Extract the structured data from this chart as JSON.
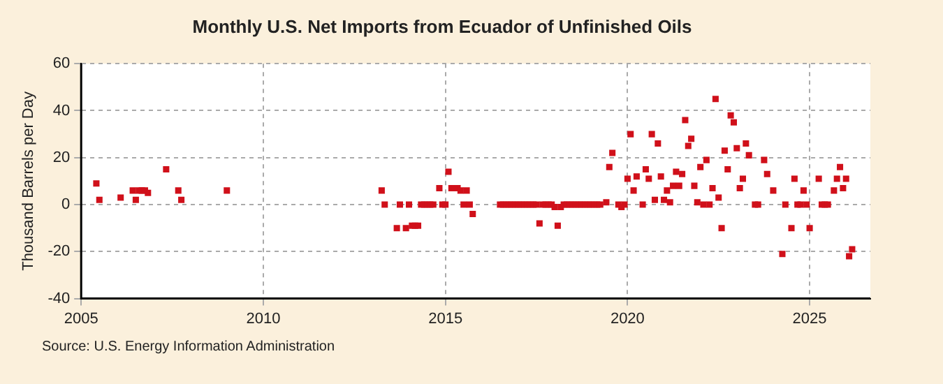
{
  "chart_data": {
    "type": "scatter",
    "title": "Monthly U.S. Net Imports from Ecuador of Unfinished Oils",
    "ylabel": "Thousand Barrels per Day",
    "annotations": [
      "Source: U.S. Energy Information Administration"
    ],
    "x": [
      "2005-06",
      "2005-07",
      "2006-02",
      "2006-06",
      "2006-07",
      "2006-08",
      "2006-09",
      "2006-10",
      "2006-11",
      "2007-05",
      "2007-09",
      "2007-10",
      "2009-01",
      "2013-04",
      "2013-05",
      "2013-09",
      "2013-10",
      "2013-12",
      "2014-01",
      "2014-02",
      "2014-03",
      "2014-04",
      "2014-05",
      "2014-06",
      "2014-07",
      "2014-08",
      "2014-09",
      "2014-11",
      "2014-12",
      "2015-01",
      "2015-02",
      "2015-03",
      "2015-04",
      "2015-05",
      "2015-06",
      "2015-07",
      "2015-08",
      "2015-09",
      "2015-10",
      "2016-07",
      "2016-08",
      "2016-09",
      "2016-10",
      "2016-11",
      "2016-12",
      "2017-01",
      "2017-02",
      "2017-03",
      "2017-04",
      "2017-05",
      "2017-06",
      "2017-07",
      "2017-08",
      "2017-09",
      "2017-10",
      "2017-11",
      "2017-12",
      "2018-01",
      "2018-02",
      "2018-03",
      "2018-04",
      "2018-05",
      "2018-06",
      "2018-07",
      "2018-08",
      "2018-09",
      "2018-10",
      "2018-11",
      "2018-12",
      "2019-01",
      "2019-02",
      "2019-03",
      "2019-04",
      "2019-06",
      "2019-07",
      "2019-08",
      "2019-10",
      "2019-11",
      "2019-12",
      "2020-01",
      "2020-02",
      "2020-03",
      "2020-04",
      "2020-06",
      "2020-07",
      "2020-08",
      "2020-09",
      "2020-10",
      "2020-11",
      "2020-12",
      "2021-01",
      "2021-02",
      "2021-03",
      "2021-04",
      "2021-05",
      "2021-06",
      "2021-07",
      "2021-08",
      "2021-09",
      "2021-10",
      "2021-11",
      "2021-12",
      "2022-01",
      "2022-02",
      "2022-03",
      "2022-04",
      "2022-05",
      "2022-06",
      "2022-07",
      "2022-08",
      "2022-09",
      "2022-10",
      "2022-11",
      "2022-12",
      "2023-01",
      "2023-02",
      "2023-03",
      "2023-04",
      "2023-05",
      "2023-07",
      "2023-08",
      "2023-10",
      "2023-11",
      "2024-01",
      "2024-04",
      "2024-05",
      "2024-07",
      "2024-08",
      "2024-09",
      "2024-10",
      "2024-11",
      "2024-12",
      "2025-01",
      "2025-04",
      "2025-05",
      "2025-06",
      "2025-07",
      "2025-09",
      "2025-10",
      "2025-11",
      "2025-12",
      "2026-01",
      "2026-02",
      "2026-03"
    ],
    "series": [
      {
        "color": "#d0101a",
        "values": [
          9,
          2,
          3,
          6,
          2,
          6,
          6,
          6,
          5,
          15,
          6,
          2,
          6,
          6,
          0,
          -10,
          0,
          -10,
          0,
          -9,
          -9,
          -9,
          0,
          0,
          0,
          0,
          0,
          7,
          0,
          0,
          14,
          7,
          7,
          7,
          6,
          0,
          6,
          0,
          -4,
          0,
          0,
          0,
          0,
          0,
          0,
          0,
          0,
          0,
          0,
          0,
          0,
          0,
          -8,
          0,
          0,
          0,
          0,
          -1,
          -9,
          -1,
          0,
          0,
          0,
          0,
          0,
          0,
          0,
          0,
          0,
          0,
          0,
          0,
          0,
          1,
          16,
          22,
          0,
          -1,
          0,
          11,
          30,
          6,
          12,
          0,
          15,
          11,
          30,
          2,
          26,
          12,
          2,
          6,
          1,
          8,
          14,
          8,
          13,
          36,
          25,
          28,
          8,
          1,
          16,
          0,
          19,
          0,
          7,
          45,
          3,
          -10,
          23,
          15,
          38,
          35,
          24,
          7,
          11,
          26,
          21,
          0,
          0,
          19,
          13,
          6,
          -21,
          0,
          -10,
          11,
          0,
          0,
          6,
          0,
          -10,
          11,
          0,
          0,
          0,
          6,
          11,
          16,
          7,
          11,
          -22,
          -19
        ]
      }
    ],
    "xlim": [
      "2005",
      "2026-09"
    ],
    "xticks": [
      "2005",
      "2010",
      "2015",
      "2020",
      "2025"
    ],
    "ylim": [
      -40,
      60
    ],
    "yticks": [
      -40,
      -20,
      0,
      20,
      40,
      60
    ],
    "grid": true,
    "marker": "square"
  }
}
